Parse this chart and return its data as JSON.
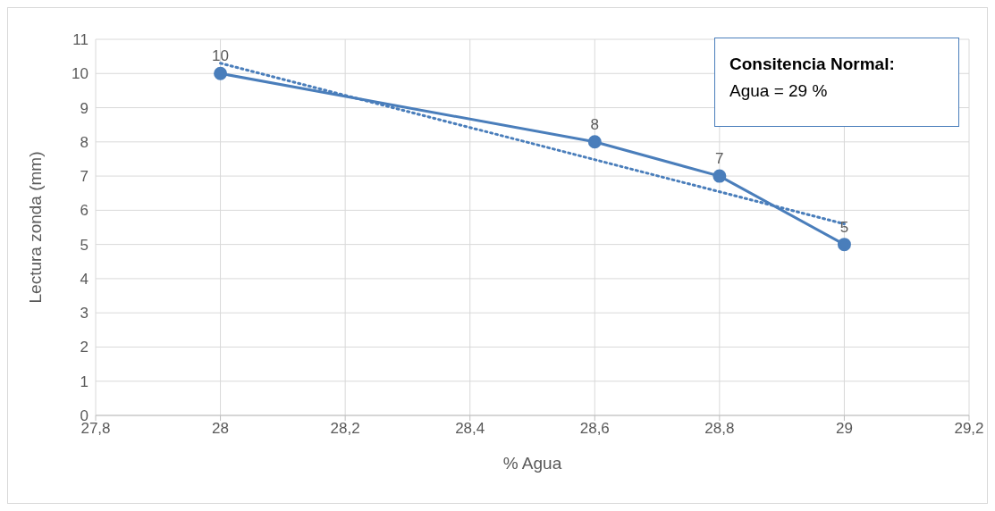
{
  "chart_data": {
    "type": "line",
    "xlabel": "% Agua",
    "ylabel": "Lectura zonda (mm)",
    "annotations": [
      "Consitencia Normal:",
      "Agua = 29 %"
    ],
    "x": [
      28,
      28.6,
      28.8,
      29
    ],
    "series": [
      {
        "color": "#4a7ebb",
        "values": [
          10,
          8,
          7,
          5
        ],
        "value_labels": [
          "10",
          "8",
          "7",
          "5"
        ],
        "marker": "circle",
        "line_style": "solid"
      },
      {
        "type": "line",
        "color": "#4a7ebb",
        "x": [
          28,
          29
        ],
        "values": [
          10.3,
          5.6
        ],
        "marker": "none",
        "line_style": "dotted"
      }
    ],
    "xlim": [
      27.8,
      29.2
    ],
    "xticks": [
      {
        "value": 27.8,
        "label": "27,8"
      },
      {
        "value": 28,
        "label": "28"
      },
      {
        "value": 28.2,
        "label": "28,2"
      },
      {
        "value": 28.4,
        "label": "28,4"
      },
      {
        "value": 28.6,
        "label": "28,6"
      },
      {
        "value": 28.8,
        "label": "28,8"
      },
      {
        "value": 29,
        "label": "29"
      },
      {
        "value": 29.2,
        "label": "29,2"
      }
    ],
    "ylim": [
      0,
      11
    ],
    "yticks": [
      0,
      1,
      2,
      3,
      4,
      5,
      6,
      7,
      8,
      9,
      10,
      11
    ],
    "grid": true
  }
}
